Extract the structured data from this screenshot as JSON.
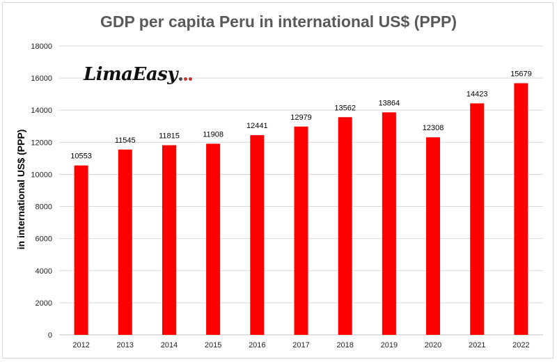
{
  "chart_data": {
    "type": "bar",
    "title": "GDP per capita Peru in international US$ (PPP)",
    "ylabel": "in international US$ (PPP)",
    "xlabel": "",
    "categories": [
      "2012",
      "2013",
      "2014",
      "2015",
      "2016",
      "2017",
      "2018",
      "2019",
      "2020",
      "2021",
      "2022"
    ],
    "values": [
      10553,
      11545,
      11815,
      11908,
      12441,
      12979,
      13562,
      13864,
      12308,
      14423,
      15679
    ],
    "ylim": [
      0,
      18000
    ],
    "yticks": [
      0,
      2000,
      4000,
      6000,
      8000,
      10000,
      12000,
      14000,
      16000,
      18000
    ],
    "grid": true,
    "legend": "none",
    "bar_color": "#ff0000"
  },
  "logo": {
    "text": "LimaEasy",
    "dot_colors": [
      "#444444",
      "#c0392b",
      "#c0392b"
    ]
  }
}
